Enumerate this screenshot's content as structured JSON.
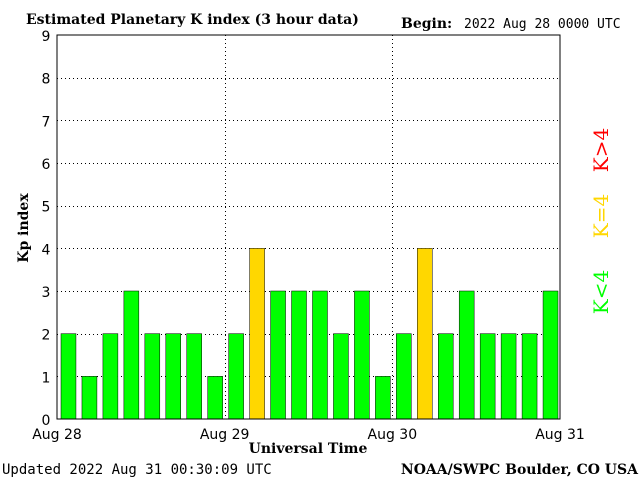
{
  "header": {
    "title": "Estimated Planetary K index (3 hour data)",
    "begin_label": "Begin:",
    "begin_value": "2022 Aug 28 0000 UTC"
  },
  "footer": {
    "updated": "Updated 2022 Aug 31 00:30:09 UTC",
    "source": "NOAA/SWPC Boulder, CO USA"
  },
  "legend": {
    "high": "K>4",
    "equal": "K=4",
    "low": "K<4"
  },
  "colors": {
    "low": "#00ff00",
    "equal": "#ffd700",
    "high": "#ff0000",
    "bar_border": "#000000"
  },
  "chart_data": {
    "type": "bar",
    "title": "Estimated Planetary K index (3 hour data)",
    "xlabel": "Universal Time",
    "ylabel": "Kp index",
    "ylim": [
      0,
      9
    ],
    "yticks": [
      "0",
      "1",
      "2",
      "3",
      "4",
      "5",
      "6",
      "7",
      "8",
      "9"
    ],
    "xtick_labels": [
      "Aug 28",
      "Aug 29",
      "Aug 30",
      "Aug 31"
    ],
    "interval_hours": 3,
    "values": [
      2,
      1,
      2,
      3,
      2,
      2,
      2,
      1,
      2,
      4,
      3,
      3,
      3,
      2,
      3,
      1,
      2,
      4,
      2,
      3,
      2,
      2,
      2,
      3
    ],
    "grid": true
  }
}
